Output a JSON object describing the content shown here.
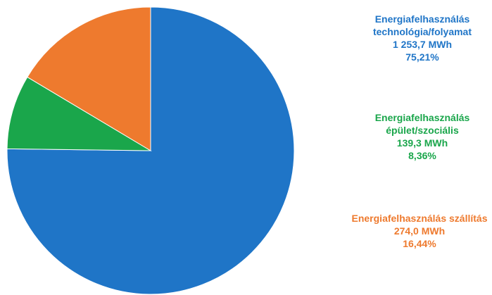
{
  "chart_data": {
    "type": "pie",
    "unit": "MWh",
    "slices": [
      {
        "label_line1": "Energiafelhasználás",
        "label_line2": "technológia/folyamat",
        "value": 1253.7,
        "value_text": "1 253,7 MWh",
        "percent": 75.21,
        "percent_text": "75,21%",
        "color": "#1f75c7"
      },
      {
        "label_line1": "Energiafelhasználás",
        "label_line2": "épület/szociális",
        "value": 139.3,
        "value_text": "139,3 MWh",
        "percent": 8.36,
        "percent_text": "8,36%",
        "color": "#1aa64b"
      },
      {
        "label_line1": "Energiafelhasználás szállítás",
        "label_line2": "",
        "value": 274.0,
        "value_text": "274,0 MWh",
        "percent": 16.44,
        "percent_text": "16,44%",
        "color": "#ee7a2e"
      }
    ]
  }
}
